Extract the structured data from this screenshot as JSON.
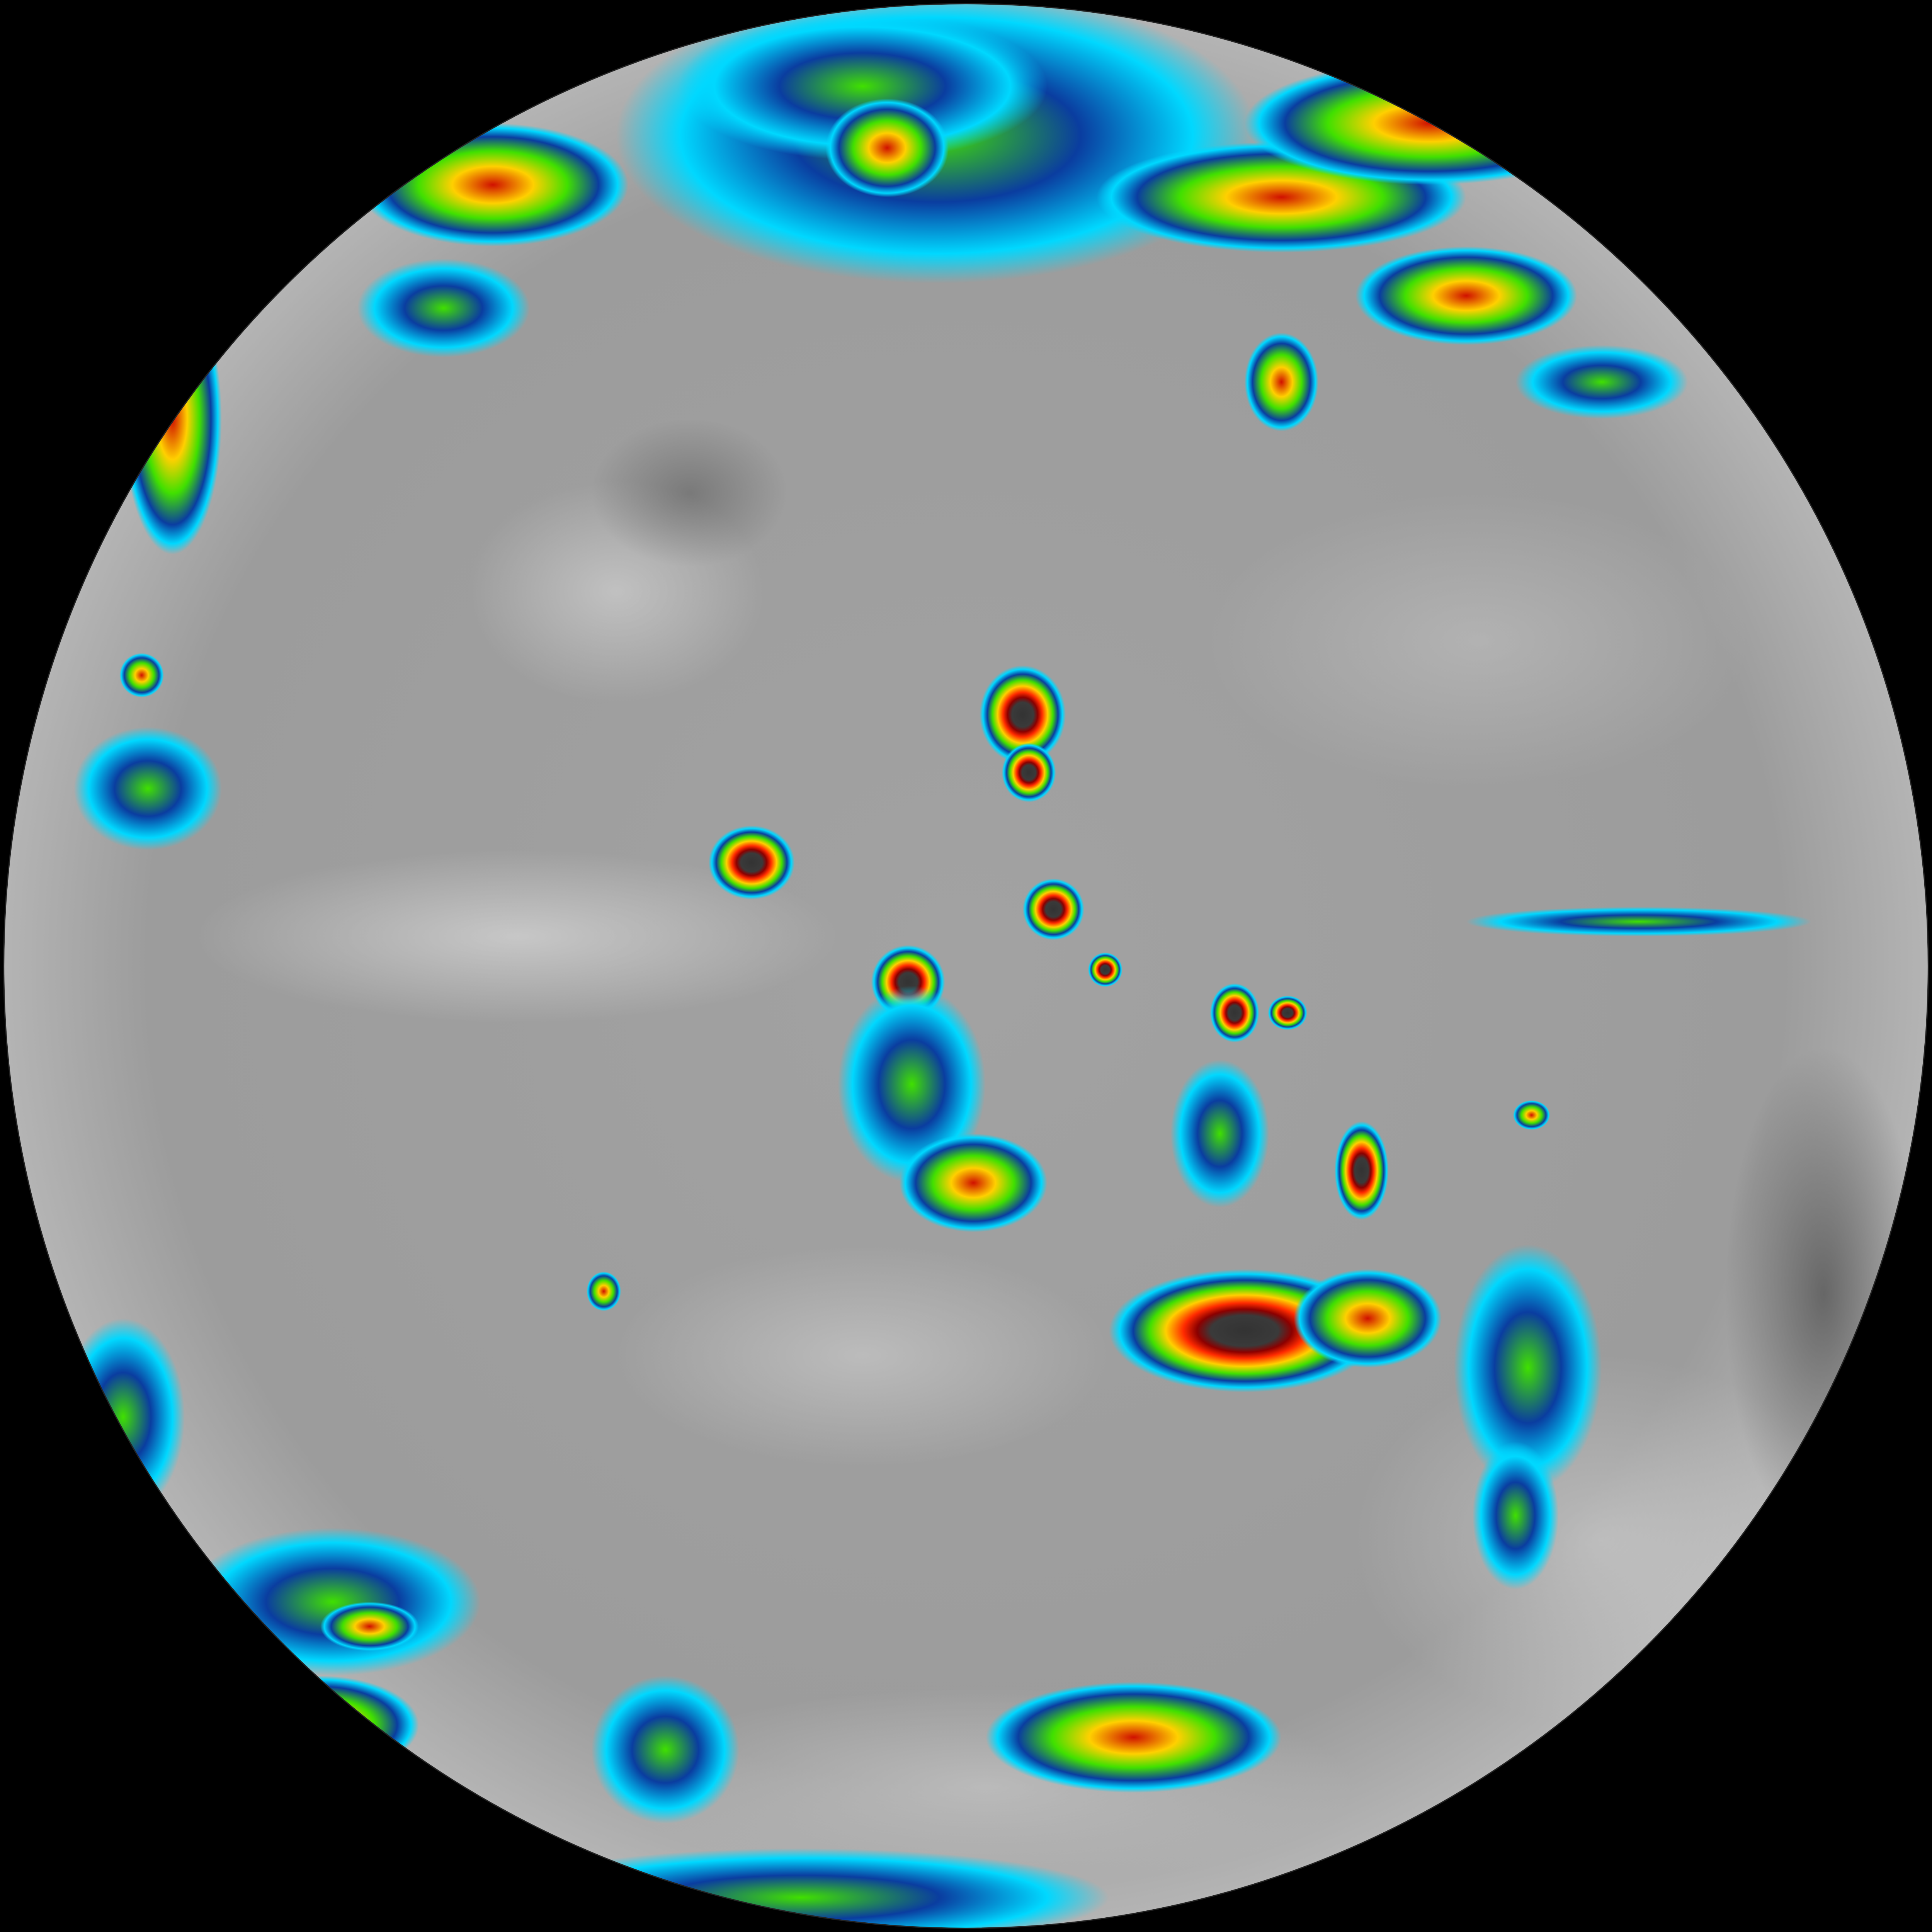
{
  "colors": {
    "space": "#000000",
    "clear_sky": "#9a9a9a",
    "low_cloud": "#c8c8c8",
    "cold_top_core": "#2e2e2e",
    "enhancement_scale": [
      "#2e2e2e",
      "#8b0000",
      "#ff2000",
      "#ffd000",
      "#40e000",
      "#0a3da0",
      "#00e0ff"
    ]
  }
}
